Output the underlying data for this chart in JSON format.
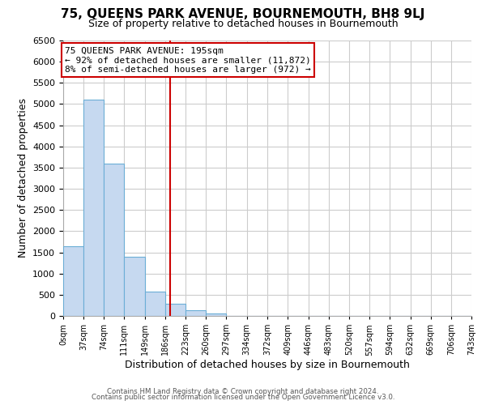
{
  "title": "75, QUEENS PARK AVENUE, BOURNEMOUTH, BH8 9LJ",
  "subtitle": "Size of property relative to detached houses in Bournemouth",
  "xlabel": "Distribution of detached houses by size in Bournemouth",
  "ylabel": "Number of detached properties",
  "bar_edges": [
    0,
    37,
    74,
    111,
    149,
    186,
    223,
    260,
    297,
    334,
    372,
    409,
    446,
    483,
    520,
    557,
    594,
    632,
    669,
    706,
    743
  ],
  "bar_heights": [
    1650,
    5100,
    3600,
    1400,
    580,
    290,
    140,
    50,
    0,
    0,
    0,
    0,
    0,
    0,
    0,
    0,
    0,
    0,
    0,
    0
  ],
  "bar_color": "#c6d9f0",
  "bar_edge_color": "#6baed6",
  "property_size": 195,
  "vline_color": "#cc0000",
  "annotation_line1": "75 QUEENS PARK AVENUE: 195sqm",
  "annotation_line2": "← 92% of detached houses are smaller (11,872)",
  "annotation_line3": "8% of semi-detached houses are larger (972) →",
  "annotation_box_color": "#ffffff",
  "annotation_box_edge": "#cc0000",
  "ylim": [
    0,
    6500
  ],
  "tick_labels": [
    "0sqm",
    "37sqm",
    "74sqm",
    "111sqm",
    "149sqm",
    "186sqm",
    "223sqm",
    "260sqm",
    "297sqm",
    "334sqm",
    "372sqm",
    "409sqm",
    "446sqm",
    "483sqm",
    "520sqm",
    "557sqm",
    "594sqm",
    "632sqm",
    "669sqm",
    "706sqm",
    "743sqm"
  ],
  "footer_line1": "Contains HM Land Registry data © Crown copyright and database right 2024.",
  "footer_line2": "Contains public sector information licensed under the Open Government Licence v3.0.",
  "background_color": "#ffffff",
  "grid_color": "#cccccc"
}
